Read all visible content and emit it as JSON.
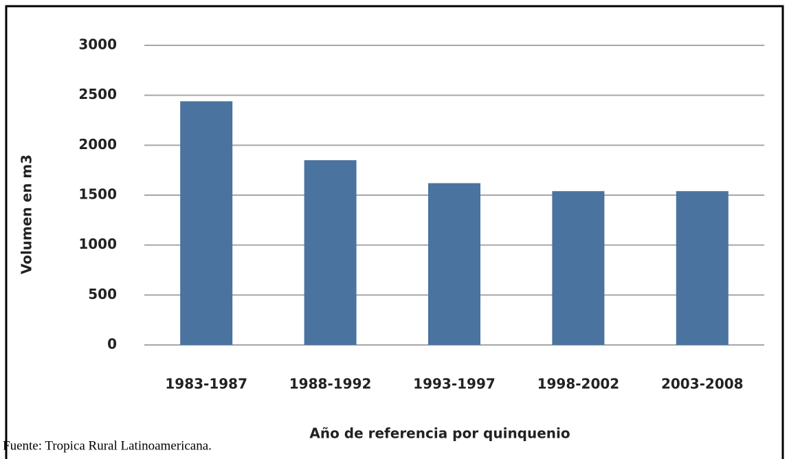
{
  "chart_data": {
    "type": "bar",
    "x_label": "Año de referencia por quinquenio",
    "y_label": "Volumen en m3",
    "source": "Fuente: Tropica Rural Latinoamericana.",
    "categories": [
      "1983-1987",
      "1988-1992",
      "1993-1997",
      "1998-2002",
      "2003-2008"
    ],
    "values": [
      2440,
      1850,
      1620,
      1540,
      1540
    ],
    "color": "#4a73a0",
    "ylim": [
      0,
      3000
    ],
    "yticks": [
      0,
      500,
      1000,
      1500,
      2000,
      2500,
      3000
    ],
    "grid": true
  }
}
